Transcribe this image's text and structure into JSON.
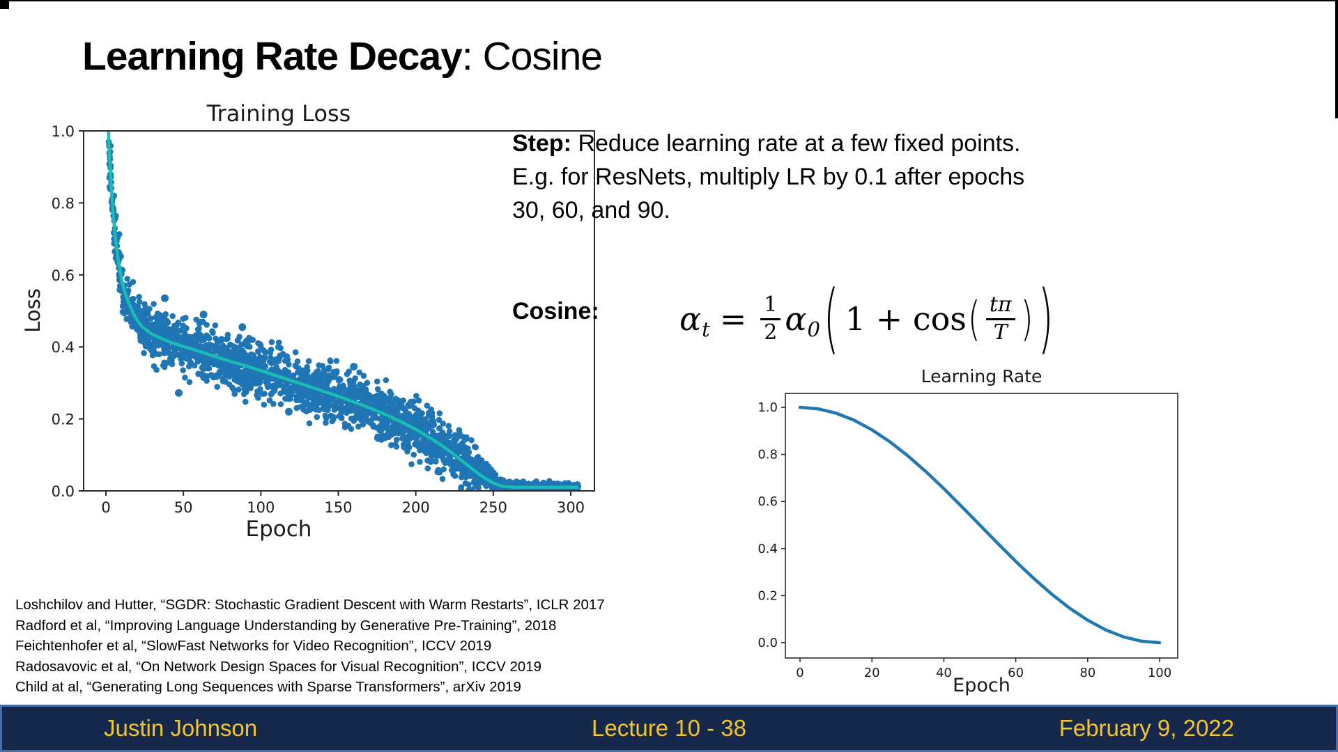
{
  "slide": {
    "title_bold": "Learning Rate Decay",
    "title_regular": ": Cosine"
  },
  "step": {
    "label": "Step:",
    "lines": [
      "Reduce learning rate at a few fixed points.",
      "E.g. for ResNets, multiply LR by 0.1 after epochs",
      "30, 60, and 90."
    ]
  },
  "cosine_label": "Cosine:",
  "formula": {
    "alpha": "α",
    "sub_t": "t",
    "equals": "=",
    "half_num": "1",
    "half_den": "2",
    "alpha2": "α",
    "sub_0": "0",
    "lparen": "(",
    "one_plus": "1 +",
    "cos": "cos",
    "lparen2": "(",
    "tpi": "tπ",
    "T": "T",
    "rparen2": ")",
    "rparen": ")"
  },
  "citations": [
    "Loshchilov and Hutter, “SGDR: Stochastic Gradient Descent with Warm Restarts”, ICLR 2017",
    "Radford et al, “Improving Language Understanding by Generative Pre-Training”, 2018",
    "Feichtenhofer et al, “SlowFast Networks for Video Recognition”, ICCV 2019",
    "Radosavovic et al, “On Network Design Spaces for Visual Recognition”, ICCV 2019",
    "Child at al, “Generating Long Sequences with Sparse Transformers”, arXiv 2019"
  ],
  "footer": {
    "author": "Justin Johnson",
    "lecture": "Lecture 10 - 38",
    "date": "February 9, 2022",
    "bar_color": "#16294d",
    "border_color": "#4a6da3",
    "text_color": "#f4c62b"
  },
  "chart_data": [
    {
      "type": "scatter",
      "title": "Training Loss",
      "xlabel": "Epoch",
      "ylabel": "Loss",
      "xlim": [
        -15,
        315
      ],
      "ylim": [
        0.0,
        1.0
      ],
      "xticks": [
        0,
        50,
        100,
        150,
        200,
        250,
        300
      ],
      "yticks": [
        0.0,
        0.2,
        0.4,
        0.6,
        0.8,
        1.0
      ],
      "grid": false,
      "colors": {
        "scatter": "#2076b4",
        "mean_line": "#17bcb4",
        "axis": "#2b2b2b"
      },
      "mean_curve": [
        [
          1.2,
          1.06
        ],
        [
          2,
          0.96
        ],
        [
          3,
          0.88
        ],
        [
          4,
          0.81
        ],
        [
          5,
          0.755
        ],
        [
          6,
          0.71
        ],
        [
          7,
          0.67
        ],
        [
          8,
          0.64
        ],
        [
          9,
          0.615
        ],
        [
          10,
          0.59
        ],
        [
          12,
          0.555
        ],
        [
          14,
          0.53
        ],
        [
          16,
          0.51
        ],
        [
          18,
          0.49
        ],
        [
          20,
          0.475
        ],
        [
          23,
          0.458
        ],
        [
          26,
          0.447
        ],
        [
          30,
          0.435
        ],
        [
          35,
          0.425
        ],
        [
          40,
          0.416
        ],
        [
          45,
          0.408
        ],
        [
          50,
          0.401
        ],
        [
          55,
          0.395
        ],
        [
          60,
          0.388
        ],
        [
          65,
          0.381
        ],
        [
          70,
          0.374
        ],
        [
          75,
          0.367
        ],
        [
          80,
          0.36
        ],
        [
          85,
          0.354
        ],
        [
          90,
          0.348
        ],
        [
          95,
          0.341
        ],
        [
          100,
          0.334
        ],
        [
          105,
          0.327
        ],
        [
          110,
          0.32
        ],
        [
          115,
          0.313
        ],
        [
          120,
          0.306
        ],
        [
          125,
          0.299
        ],
        [
          130,
          0.292
        ],
        [
          135,
          0.285
        ],
        [
          140,
          0.277
        ],
        [
          145,
          0.27
        ],
        [
          150,
          0.263
        ],
        [
          155,
          0.255
        ],
        [
          160,
          0.247
        ],
        [
          165,
          0.239
        ],
        [
          170,
          0.231
        ],
        [
          175,
          0.222
        ],
        [
          180,
          0.213
        ],
        [
          185,
          0.203
        ],
        [
          190,
          0.193
        ],
        [
          195,
          0.182
        ],
        [
          200,
          0.171
        ],
        [
          205,
          0.158
        ],
        [
          210,
          0.145
        ],
        [
          215,
          0.131
        ],
        [
          220,
          0.116
        ],
        [
          225,
          0.1
        ],
        [
          230,
          0.083
        ],
        [
          235,
          0.066
        ],
        [
          240,
          0.049
        ],
        [
          245,
          0.034
        ],
        [
          250,
          0.022
        ],
        [
          255,
          0.014
        ],
        [
          260,
          0.011
        ],
        [
          265,
          0.01
        ],
        [
          270,
          0.01
        ],
        [
          280,
          0.01
        ],
        [
          290,
          0.01
        ],
        [
          300,
          0.01
        ],
        [
          305,
          0.01
        ]
      ],
      "scatter": {
        "n_points": 2400,
        "x_min": 1,
        "x_max": 305,
        "noise_std": 0.035,
        "tail_start": 235,
        "tail_noise_std": 0.006,
        "point_radius": 4.3,
        "seed": 20220209
      },
      "outliers": [
        [
          38,
          0.535
        ],
        [
          47,
          0.272
        ],
        [
          63,
          0.49
        ],
        [
          88,
          0.455
        ],
        [
          118,
          0.22
        ],
        [
          160,
          0.345
        ],
        [
          197,
          0.245
        ],
        [
          212,
          0.105
        ]
      ]
    },
    {
      "type": "line",
      "title": "Learning Rate",
      "xlabel": "Epoch",
      "ylabel": "",
      "xlim": [
        -5,
        105
      ],
      "ylim": [
        0.0,
        1.0
      ],
      "xticks": [
        0,
        20,
        40,
        60,
        80,
        100
      ],
      "yticks": [
        0.0,
        0.2,
        0.4,
        0.6,
        0.8,
        1.0
      ],
      "grid": false,
      "colors": {
        "line": "#2177b4",
        "axis": "#2b2b2b"
      },
      "x": [
        0,
        5,
        10,
        15,
        20,
        25,
        30,
        35,
        40,
        45,
        50,
        55,
        60,
        65,
        70,
        75,
        80,
        85,
        90,
        95,
        100
      ],
      "y": [
        1.0,
        0.9938,
        0.9755,
        0.9455,
        0.9045,
        0.8536,
        0.7939,
        0.727,
        0.6545,
        0.5782,
        0.5,
        0.4218,
        0.3455,
        0.273,
        0.2061,
        0.1464,
        0.0955,
        0.0545,
        0.0245,
        0.0062,
        0.0
      ]
    }
  ]
}
